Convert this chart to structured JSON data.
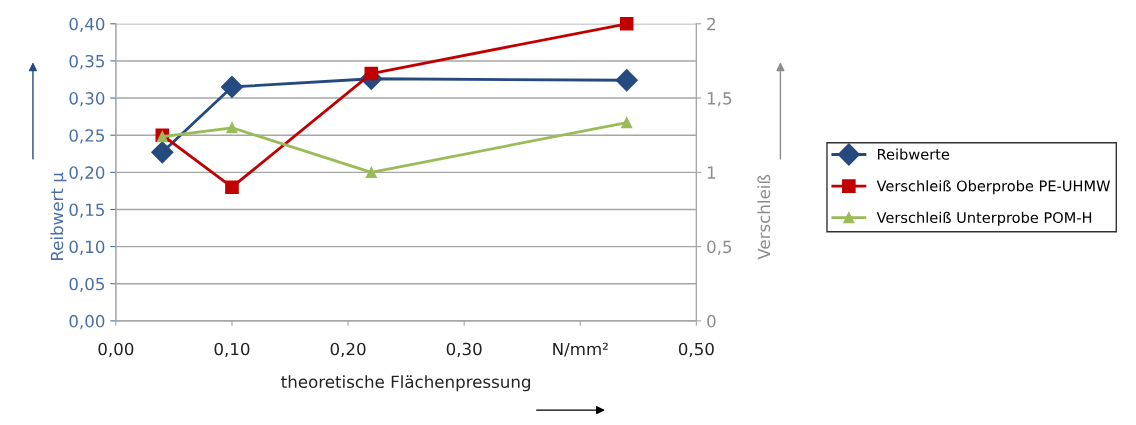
{
  "chart_data": {
    "type": "line",
    "xlabel": "theoretische Flächenpressung",
    "ylabel": "Reibwert µ",
    "y2label": "Verschleiß",
    "x": [
      0.04,
      0.1,
      0.22,
      0.44
    ],
    "series": [
      {
        "name": "Reibwerte",
        "color": "#244a80",
        "marker": "diamond",
        "values": [
          0.227,
          0.315,
          0.326,
          0.324
        ]
      },
      {
        "name": "Verschleiß Oberprobe PE-UHMW",
        "color": "#c00000",
        "marker": "square",
        "axis": "y2",
        "values": [
          1.25,
          0.9,
          1.665,
          2.0
        ]
      },
      {
        "name": "Verschleiß Unterprobe POM-H",
        "color": "#9bbb59",
        "marker": "triangle",
        "axis": "y2",
        "values": [
          1.24,
          1.3,
          1.0,
          1.335
        ]
      }
    ],
    "xlim": [
      0,
      0.5
    ],
    "xticks": [
      {
        "value": 0,
        "label": "0,00"
      },
      {
        "value": 0.1,
        "label": "0,10"
      },
      {
        "value": 0.2,
        "label": "0,20"
      },
      {
        "value": 0.3,
        "label": "0,30"
      },
      {
        "value": 0.4,
        "label": "N/mm²"
      },
      {
        "value": 0.5,
        "label": "0,50"
      }
    ],
    "ylim": [
      0,
      0.4
    ],
    "yticks": [
      {
        "value": 0,
        "label": "0,00"
      },
      {
        "value": 0.05,
        "label": "0,05"
      },
      {
        "value": 0.1,
        "label": "0,10"
      },
      {
        "value": 0.15,
        "label": "0,15"
      },
      {
        "value": 0.2,
        "label": "0,20"
      },
      {
        "value": 0.25,
        "label": "0,25"
      },
      {
        "value": 0.3,
        "label": "0,30"
      },
      {
        "value": 0.35,
        "label": "0,35"
      },
      {
        "value": 0.4,
        "label": "0,40"
      }
    ],
    "y2lim": [
      0,
      2
    ],
    "y2ticks": [
      0,
      {
        "value": 0.5,
        "label": "0,5"
      },
      1,
      {
        "value": 1.5,
        "label": "1,5"
      },
      2
    ],
    "grid": "y",
    "legend": "right",
    "line_style": "solid"
  }
}
